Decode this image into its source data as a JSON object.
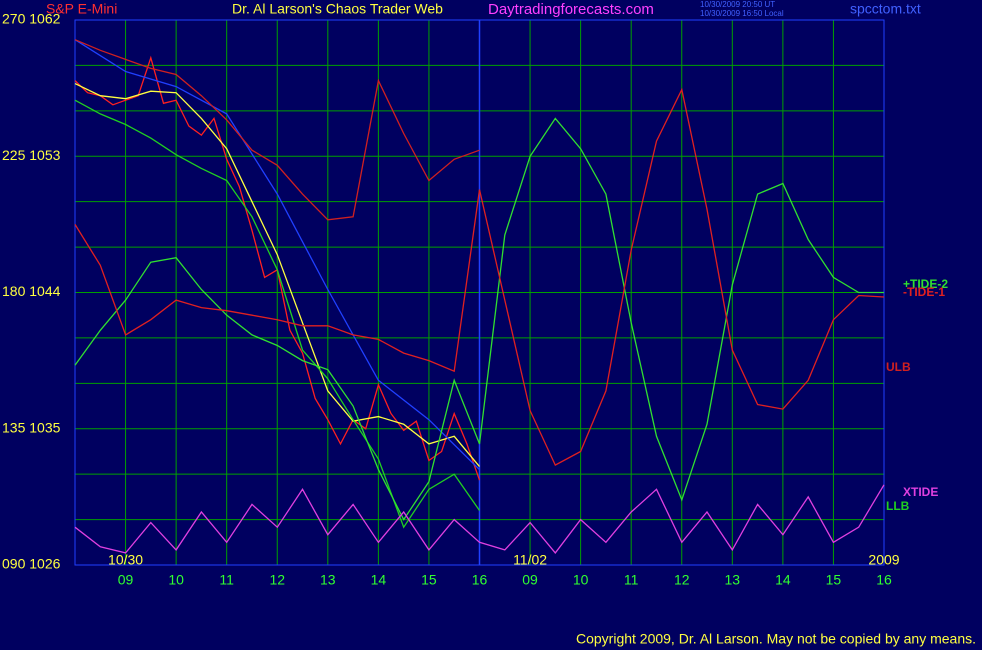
{
  "chart_data": {
    "type": "line",
    "symbol": "S&P E-Mini",
    "title": "Dr. Al Larson's Chaos Trader Web",
    "site": "Daytradingforecasts.com",
    "timestamps": [
      "10/30/2009 20:50 UT",
      "10/30/2009 16:50 Local"
    ],
    "file": "spcctom.txt",
    "copyright": "Copyright 2009, Dr. Al Larson. May not be copied by any means.",
    "xlim": [
      0,
      16
    ],
    "ylim": [
      1026,
      1062
    ],
    "yticks": [
      {
        "value": 1062,
        "label": "270 1062"
      },
      {
        "value": 1053,
        "label": "225 1053"
      },
      {
        "value": 1044,
        "label": "180 1044"
      },
      {
        "value": 1035,
        "label": "135 1035"
      },
      {
        "value": 1026,
        "label": "090 1026"
      }
    ],
    "ygrid": [
      1059,
      1056,
      1050,
      1047,
      1041,
      1038,
      1032,
      1029
    ],
    "xticks": [
      {
        "value": 1,
        "label": "09"
      },
      {
        "value": 2,
        "label": "10"
      },
      {
        "value": 3,
        "label": "11"
      },
      {
        "value": 4,
        "label": "12"
      },
      {
        "value": 5,
        "label": "13"
      },
      {
        "value": 6,
        "label": "14"
      },
      {
        "value": 7,
        "label": "15"
      },
      {
        "value": 8,
        "label": "16"
      },
      {
        "value": 9,
        "label": "09"
      },
      {
        "value": 10,
        "label": "10"
      },
      {
        "value": 11,
        "label": "11"
      },
      {
        "value": 12,
        "label": "12"
      },
      {
        "value": 13,
        "label": "13"
      },
      {
        "value": 14,
        "label": "14"
      },
      {
        "value": 15,
        "label": "15"
      },
      {
        "value": 16,
        "label": "16"
      }
    ],
    "now_x": 8,
    "date_labels": [
      {
        "x": 1,
        "label": "10/30"
      },
      {
        "x": 9,
        "label": "11/02"
      },
      {
        "x": 16,
        "label": "2009"
      }
    ],
    "grid": true,
    "series": [
      {
        "color": "#ff2020",
        "x": [
          0,
          0.25,
          0.5,
          0.75,
          1,
          1.25,
          1.5,
          1.75,
          2,
          2.25,
          2.5,
          2.75,
          3,
          3.25,
          3.5,
          3.75,
          4,
          4.25,
          4.5,
          4.75,
          5,
          5.25,
          5.5,
          5.75,
          6,
          6.25,
          6.5,
          6.75,
          7,
          7.25,
          7.5,
          7.75,
          8
        ],
        "values": [
          1058.0,
          1057.2,
          1057.0,
          1056.4,
          1056.7,
          1057.0,
          1059.5,
          1056.5,
          1056.7,
          1055.0,
          1054.4,
          1055.5,
          1052.8,
          1051.0,
          1048.1,
          1045.0,
          1045.5,
          1041.5,
          1040.0,
          1037.0,
          1035.6,
          1034.0,
          1035.6,
          1035.0,
          1037.9,
          1036.0,
          1034.9,
          1035.5,
          1032.9,
          1033.5,
          1036.0,
          1034.0,
          1031.6
        ]
      },
      {
        "color": "#ffff40",
        "x": [
          0,
          0.5,
          1,
          1.5,
          2,
          2.5,
          3,
          3.5,
          4,
          4.5,
          5,
          5.5,
          6,
          6.5,
          7,
          7.5,
          8
        ],
        "values": [
          1057.8,
          1057.0,
          1056.8,
          1057.3,
          1057.2,
          1055.5,
          1053.5,
          1050.0,
          1046.5,
          1042.0,
          1037.5,
          1035.5,
          1035.8,
          1035.3,
          1034.0,
          1034.5,
          1032.5
        ]
      },
      {
        "color": "#2040ff",
        "x": [
          0,
          1,
          2,
          3,
          4,
          5,
          6,
          7,
          8
        ],
        "values": [
          1060.7,
          1058.6,
          1057.6,
          1055.8,
          1050.5,
          1044.2,
          1038.2,
          1035.6,
          1032.3
        ]
      },
      {
        "name": "ULB",
        "color": "#d02020",
        "x": [
          0,
          0.5,
          1,
          1.5,
          2,
          2.5,
          3,
          3.5,
          4,
          4.5,
          5,
          5.5,
          6,
          6.5,
          7,
          7.5,
          8
        ],
        "values": [
          1060.7,
          1060.0,
          1059.4,
          1058.8,
          1058.4,
          1057.0,
          1055.4,
          1053.4,
          1052.4,
          1050.5,
          1048.8,
          1049.0,
          1058.0,
          1054.5,
          1051.4,
          1052.8,
          1053.4
        ]
      },
      {
        "name": "LLB",
        "color": "#20d020",
        "x": [
          0,
          0.5,
          1,
          1.5,
          2,
          2.5,
          3,
          3.5,
          4,
          4.5,
          5,
          5.5,
          6,
          6.5,
          7,
          7.5,
          8
        ],
        "values": [
          1056.7,
          1055.8,
          1055.1,
          1054.2,
          1053.1,
          1052.2,
          1051.4,
          1049.0,
          1045.5,
          1040.2,
          1038.3,
          1035.6,
          1033.0,
          1028.5,
          1031.0,
          1032.0,
          1029.6
        ]
      },
      {
        "name": "+TIDE-2",
        "color": "#30e030",
        "x": [
          0,
          0.5,
          1,
          1.5,
          2,
          2.5,
          3,
          3.5,
          4,
          4.5,
          5,
          5.5,
          6,
          6.5,
          7,
          7.5,
          8,
          8.5,
          9,
          9.5,
          10,
          10.5,
          11,
          11.5,
          12,
          12.5,
          13,
          13.5,
          14,
          14.5,
          15,
          15.5,
          16
        ],
        "values": [
          1039.2,
          1041.5,
          1043.5,
          1046.0,
          1046.3,
          1044.2,
          1042.5,
          1041.2,
          1040.5,
          1039.5,
          1038.9,
          1036.5,
          1032.3,
          1029.0,
          1031.5,
          1038.2,
          1034.0,
          1047.8,
          1053.0,
          1055.5,
          1053.5,
          1050.5,
          1042.0,
          1034.5,
          1030.3,
          1035.3,
          1044.5,
          1050.5,
          1051.2,
          1047.5,
          1045.0,
          1044.0,
          1044.0
        ]
      },
      {
        "name": "-TIDE-1",
        "color": "#e02020",
        "x": [
          0,
          0.5,
          1,
          1.5,
          2,
          2.5,
          3,
          3.5,
          4,
          4.5,
          5,
          5.5,
          6,
          6.5,
          7,
          7.5,
          8,
          8.5,
          9,
          9.5,
          10,
          10.5,
          11,
          11.5,
          12,
          12.5,
          13,
          13.5,
          14,
          14.5,
          15,
          15.5,
          16
        ],
        "values": [
          1048.5,
          1045.8,
          1041.2,
          1042.2,
          1043.5,
          1043.0,
          1042.8,
          1042.5,
          1042.2,
          1041.8,
          1041.8,
          1041.2,
          1040.9,
          1040.0,
          1039.5,
          1038.8,
          1050.8,
          1043.5,
          1036.2,
          1032.6,
          1033.5,
          1037.5,
          1046.8,
          1054.0,
          1057.4,
          1049.5,
          1040.2,
          1036.6,
          1036.3,
          1038.2,
          1042.2,
          1043.8,
          1043.7
        ]
      },
      {
        "name": "XTIDE",
        "color": "#e040e0",
        "x": [
          0,
          0.5,
          1,
          1.5,
          2,
          2.5,
          3,
          3.5,
          4,
          4.5,
          5,
          5.5,
          6,
          6.5,
          7,
          7.5,
          8,
          8.5,
          9,
          9.5,
          10,
          10.5,
          11,
          11.5,
          12,
          12.5,
          13,
          13.5,
          14,
          14.5,
          15,
          15.5,
          16
        ],
        "values": [
          1028.5,
          1027.2,
          1026.8,
          1028.8,
          1027.0,
          1029.5,
          1027.5,
          1030.0,
          1028.5,
          1031.0,
          1028.0,
          1030.0,
          1027.5,
          1029.5,
          1027.0,
          1029.0,
          1027.5,
          1027.0,
          1028.8,
          1026.8,
          1029.0,
          1027.5,
          1029.5,
          1031.0,
          1027.5,
          1029.5,
          1027.0,
          1030.0,
          1028.0,
          1030.5,
          1027.5,
          1028.5,
          1031.3
        ]
      }
    ]
  }
}
